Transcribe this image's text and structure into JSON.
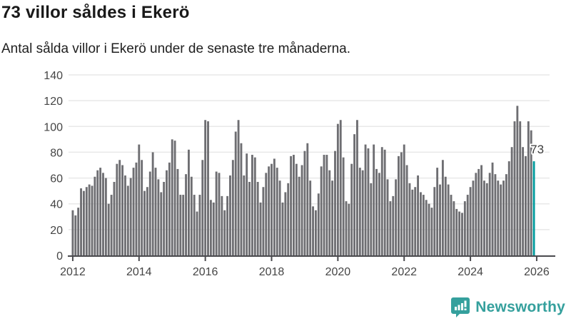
{
  "header": {
    "title": "73 villor såldes i Ekerö",
    "subtitle": "Antal sålda villor i Ekerö under de senaste tre månaderna."
  },
  "chart_data": {
    "type": "bar",
    "title": "73 villor såldes i Ekerö",
    "subtitle": "Antal sålda villor i Ekerö under de senaste tre månaderna.",
    "unit": "antal sålda villor (rullande 3 månader)",
    "x_start": "2012-01",
    "x_end": "2025-12",
    "x_frequency": "monthly",
    "values": [
      35,
      31,
      37,
      52,
      50,
      53,
      55,
      54,
      61,
      66,
      68,
      64,
      60,
      40,
      47,
      57,
      71,
      74,
      70,
      62,
      54,
      60,
      68,
      72,
      86,
      74,
      50,
      53,
      65,
      80,
      68,
      59,
      49,
      57,
      66,
      72,
      90,
      89,
      67,
      47,
      47,
      63,
      82,
      61,
      47,
      34,
      47,
      74,
      105,
      104,
      43,
      41,
      65,
      64,
      46,
      35,
      46,
      62,
      74,
      96,
      105,
      87,
      62,
      79,
      57,
      78,
      76,
      57,
      41,
      53,
      64,
      69,
      71,
      75,
      68,
      58,
      41,
      49,
      56,
      77,
      78,
      71,
      61,
      70,
      81,
      87,
      58,
      38,
      35,
      48,
      69,
      78,
      78,
      66,
      58,
      81,
      102,
      105,
      76,
      42,
      40,
      71,
      94,
      105,
      68,
      66,
      86,
      83,
      56,
      86,
      67,
      64,
      84,
      82,
      59,
      42,
      46,
      59,
      77,
      80,
      86,
      70,
      56,
      51,
      53,
      62,
      49,
      47,
      43,
      40,
      37,
      53,
      68,
      55,
      74,
      61,
      55,
      47,
      42,
      36,
      34,
      33,
      42,
      47,
      53,
      58,
      64,
      67,
      70,
      58,
      56,
      64,
      72,
      63,
      58,
      55,
      58,
      63,
      73,
      84,
      104,
      116,
      104,
      84,
      77,
      104,
      97,
      73
    ],
    "highlight_last": true,
    "highlight_label": "73",
    "x_tick_labels": [
      "2012",
      "2014",
      "2016",
      "2018",
      "2020",
      "2022",
      "2024",
      "2026"
    ],
    "x_tick_month_index": [
      0,
      24,
      48,
      72,
      96,
      120,
      144,
      168
    ],
    "y_ticks": [
      0,
      20,
      40,
      60,
      80,
      100,
      120,
      140
    ],
    "ylim": [
      0,
      140
    ],
    "grid": true,
    "legend": "none",
    "bar_color": "#6e6e72",
    "highlight_color": "#009a9c",
    "grid_color": "#e8e8e8",
    "axis_color": "#4a4a4e",
    "tick_label_color": "#454545"
  },
  "footer": {
    "brand": "Newsworthy",
    "brand_color": "#35a09d",
    "logo_icon": "bar-chart-speech-bubble-icon"
  }
}
